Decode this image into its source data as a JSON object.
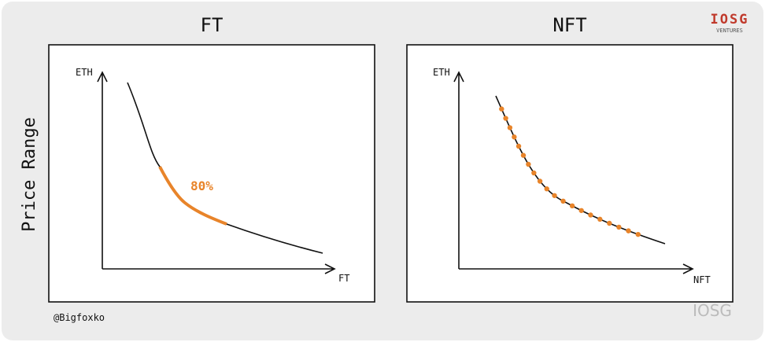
{
  "titles": {
    "left": "FT",
    "right": "NFT"
  },
  "y_label": "Price Range",
  "left_panel": {
    "y_axis": "ETH",
    "x_axis": "FT",
    "annotation": "80%"
  },
  "right_panel": {
    "y_axis": "ETH",
    "x_axis": "NFT"
  },
  "credit": "@Bigfoxko",
  "logo": {
    "name": "IOSG",
    "tagline": "VENTURES"
  },
  "watermark": "IOSG"
}
